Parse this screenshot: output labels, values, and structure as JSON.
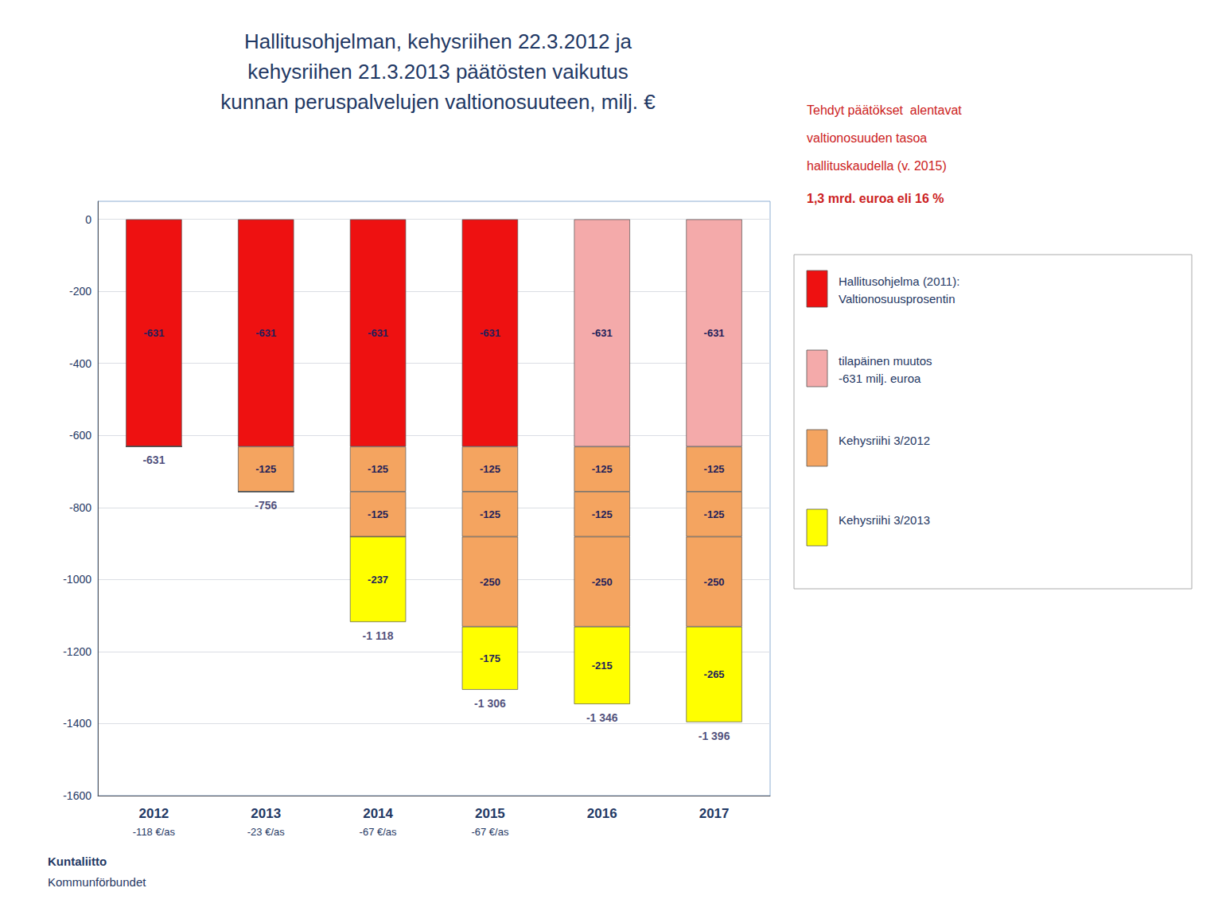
{
  "chart_data": {
    "type": "bar",
    "title": "Hallitusohjelman, kehysriihen 22.3.2012 ja\nkehysriihen 21.3.2013 päätösten vaikutus\nkunnan peruspalvelujen valtionosuuteen, milj. €",
    "categories": [
      "2012",
      "2013",
      "2014",
      "2015",
      "2016",
      "2017"
    ],
    "category_subtitles": [
      "-118 €/as",
      "-23 €/as",
      "-67 €/as",
      "-67 €/as",
      null,
      null
    ],
    "stacked": true,
    "series": [
      {
        "values": [
          -631,
          -631,
          -631,
          -631,
          -631,
          -631
        ],
        "colors": [
          "#ee1111",
          "#ee1111",
          "#ee1111",
          "#ee1111",
          "#f4aaaa",
          "#f4aaaa"
        ],
        "data_labels": true
      },
      {
        "values": [
          0,
          -125,
          -125,
          -125,
          -125,
          -125
        ],
        "color": "#f4a460",
        "data_labels": true
      },
      {
        "values": [
          0,
          0,
          -125,
          -125,
          -125,
          -125
        ],
        "color": "#f4a460",
        "data_labels": true
      },
      {
        "values": [
          0,
          0,
          0,
          -250,
          -250,
          -250
        ],
        "color": "#f4a460",
        "data_labels": true
      },
      {
        "values": [
          0,
          0,
          -237,
          -175,
          -215,
          -265
        ],
        "color": "#ffff00",
        "data_labels": true
      }
    ],
    "totals": {
      "values": [
        -631,
        -756,
        -1118,
        -1306,
        -1346,
        -1396
      ],
      "value_labels": [
        "-631",
        "-756",
        "-1 118",
        "-1 306",
        "-1 346",
        "-1 396"
      ]
    },
    "ylim": [
      -1600,
      50
    ],
    "yticks": [
      0,
      -200,
      -400,
      -600,
      -800,
      -1000,
      -1200,
      -1400,
      -1600
    ],
    "grid": true,
    "legend": "right",
    "legend_entries": [
      {
        "label": [
          "Hallitusohjelma (2011):",
          "Valtionosuusprosentin"
        ],
        "color": "#ee1111"
      },
      {
        "label": [
          "tilapäinen muutos",
          "-631 milj. euroa"
        ],
        "color": "#f4aaaa"
      },
      {
        "label": [
          "Kehysriihi 3/2012"
        ],
        "color": "#f4a460"
      },
      {
        "label": [
          "Kehysriihi 3/2013"
        ],
        "color": "#ffff00"
      }
    ],
    "annotations": [
      "Tehdyt päätökset  alentavat",
      "valtionosuuden tasoa",
      "hallituskaudella (v. 2015)",
      "1,3 mrd. euroa eli 16 %"
    ],
    "footer": [
      "Kuntaliitto",
      "Kommunförbundet"
    ]
  }
}
